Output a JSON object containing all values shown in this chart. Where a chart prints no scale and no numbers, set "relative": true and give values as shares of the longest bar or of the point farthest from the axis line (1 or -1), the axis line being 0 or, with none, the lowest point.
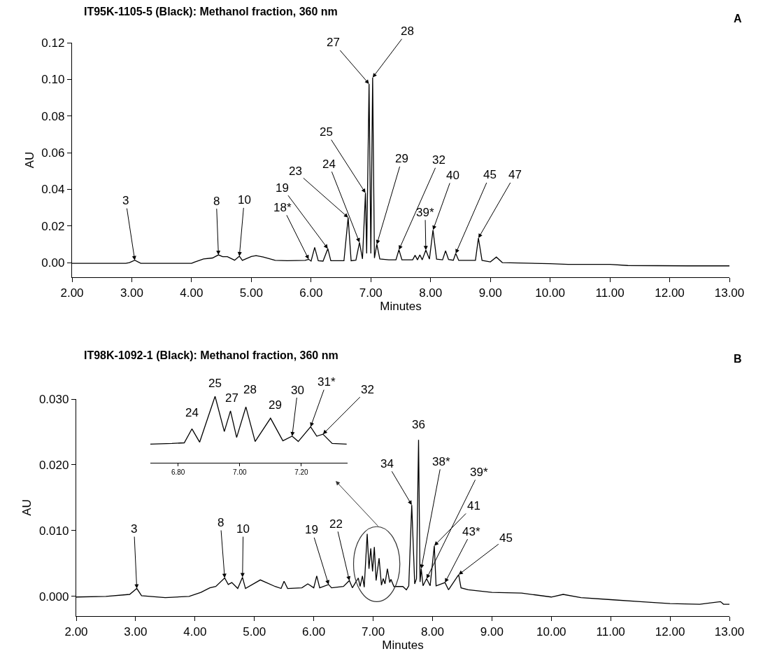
{
  "chart_data": [
    {
      "type": "line",
      "title": "IT95K-1105-5 (Black): Methanol fraction, 360 nm",
      "xlabel": "Minutes",
      "ylabel": "AU",
      "color": "#000000",
      "x": [
        2.0,
        2.9,
        2.96,
        3.05,
        3.15,
        4.0,
        4.05,
        4.2,
        4.35,
        4.45,
        4.52,
        4.6,
        4.72,
        4.8,
        4.85,
        5.0,
        5.08,
        5.2,
        5.4,
        5.6,
        5.9,
        5.96,
        6.0,
        6.06,
        6.12,
        6.2,
        6.28,
        6.33,
        6.55,
        6.62,
        6.67,
        6.75,
        6.81,
        6.86,
        6.91,
        6.93,
        6.97,
        7.0,
        7.03,
        7.06,
        7.1,
        7.15,
        7.3,
        7.42,
        7.47,
        7.52,
        7.7,
        7.74,
        7.78,
        7.82,
        7.86,
        7.92,
        7.98,
        8.04,
        8.1,
        8.2,
        8.25,
        8.3,
        8.38,
        8.42,
        8.47,
        8.75,
        8.8,
        8.86,
        9.0,
        9.1,
        9.2,
        10.0,
        10.3,
        11.0,
        11.3,
        12.3,
        13.0
      ],
      "values": [
        -0.0004,
        -0.0004,
        0.0,
        0.0013,
        -0.0004,
        -0.0004,
        0.0003,
        0.002,
        0.0025,
        0.0042,
        0.0032,
        0.0032,
        0.0013,
        0.0035,
        0.0012,
        0.0033,
        0.0038,
        0.003,
        0.0012,
        0.001,
        0.0012,
        0.0018,
        0.0008,
        0.0083,
        0.001,
        0.0008,
        0.0076,
        0.001,
        0.001,
        0.0246,
        0.001,
        0.0013,
        0.011,
        0.002,
        0.038,
        0.005,
        0.0975,
        0.005,
        0.101,
        0.0025,
        0.01,
        0.002,
        0.0015,
        0.0015,
        0.007,
        0.0015,
        0.0015,
        0.004,
        0.0015,
        0.0042,
        0.0015,
        0.0068,
        0.0019,
        0.0178,
        0.0019,
        0.0015,
        0.0064,
        0.0017,
        0.0013,
        0.005,
        0.0012,
        0.0012,
        0.0134,
        0.0012,
        0.0004,
        0.003,
        0.0,
        -0.0006,
        -0.001,
        -0.001,
        -0.0016,
        -0.0018,
        -0.0018
      ],
      "xlim": [
        2.0,
        13.0
      ],
      "xticks": [
        {
          "value": 2,
          "label": "2.00"
        },
        {
          "value": 3,
          "label": "3.00"
        },
        {
          "value": 4,
          "label": "4.00"
        },
        {
          "value": 5,
          "label": "5.00"
        },
        {
          "value": 6,
          "label": "6.00"
        },
        {
          "value": 7,
          "label": "7.00"
        },
        {
          "value": 8,
          "label": "8.00"
        },
        {
          "value": 9,
          "label": "9.00"
        },
        {
          "value": 10,
          "label": "10.00"
        },
        {
          "value": 11,
          "label": "11.00"
        },
        {
          "value": 12,
          "label": "12.00"
        },
        {
          "value": 13,
          "label": "13.00"
        }
      ],
      "ylim": [
        -0.008,
        0.12
      ],
      "yticks": [
        {
          "value": 0,
          "label": "0.00"
        },
        {
          "value": 0.02,
          "label": "0.02"
        },
        {
          "value": 0.04,
          "label": "0.04"
        },
        {
          "value": 0.06,
          "label": "0.06"
        },
        {
          "value": 0.08,
          "label": "0.08"
        },
        {
          "value": 0.1,
          "label": "0.10"
        },
        {
          "value": 0.12,
          "label": "0.12"
        }
      ],
      "annotations": [
        {
          "text": "3",
          "x": 3.05,
          "y": 0.0013
        },
        {
          "text": "8",
          "x": 4.45,
          "y": 0.0042
        },
        {
          "text": "10",
          "x": 4.8,
          "y": 0.0035
        },
        {
          "text": "18*",
          "x": 5.96,
          "y": 0.0018
        },
        {
          "text": "19",
          "x": 6.28,
          "y": 0.0076
        },
        {
          "text": "23",
          "x": 6.62,
          "y": 0.0246
        },
        {
          "text": "24",
          "x": 6.81,
          "y": 0.011
        },
        {
          "text": "25",
          "x": 6.91,
          "y": 0.038
        },
        {
          "text": "27",
          "x": 6.97,
          "y": 0.0975
        },
        {
          "text": "28",
          "x": 7.03,
          "y": 0.101
        },
        {
          "text": "29",
          "x": 7.1,
          "y": 0.01
        },
        {
          "text": "32",
          "x": 7.47,
          "y": 0.007
        },
        {
          "text": "39*",
          "x": 7.92,
          "y": 0.0068
        },
        {
          "text": "40",
          "x": 8.04,
          "y": 0.0178
        },
        {
          "text": "45",
          "x": 8.42,
          "y": 0.005
        },
        {
          "text": "47",
          "x": 8.8,
          "y": 0.0134
        },
        "A"
      ]
    },
    {
      "type": "line",
      "title": "IT98K-1092-1 (Black): Methanol fraction, 360 nm",
      "xlabel": "Minutes",
      "ylabel": "AU",
      "color": "#000000",
      "x": [
        2.0,
        2.5,
        2.9,
        3.02,
        3.1,
        3.5,
        3.9,
        4.1,
        4.25,
        4.35,
        4.5,
        4.56,
        4.62,
        4.72,
        4.8,
        4.85,
        5.1,
        5.35,
        5.45,
        5.5,
        5.56,
        5.8,
        5.9,
        6.0,
        6.05,
        6.1,
        6.25,
        6.3,
        6.5,
        6.6,
        6.65,
        6.75,
        6.78,
        6.82,
        6.85,
        6.9,
        6.93,
        6.96,
        6.99,
        7.02,
        7.05,
        7.1,
        7.14,
        7.17,
        7.2,
        7.24,
        7.28,
        7.3,
        7.35,
        7.5,
        7.56,
        7.6,
        7.65,
        7.7,
        7.73,
        7.765,
        7.79,
        7.81,
        7.84,
        7.9,
        7.96,
        8.03,
        8.06,
        8.21,
        8.27,
        8.44,
        8.48,
        8.6,
        9.0,
        9.5,
        10.0,
        10.2,
        10.5,
        11.0,
        11.5,
        12.0,
        12.5,
        12.85,
        12.9,
        13.0
      ],
      "values": [
        -0.0001,
        0.0,
        0.0003,
        0.0012,
        0.0001,
        -0.0002,
        0.0,
        0.0006,
        0.0013,
        0.0015,
        0.0028,
        0.0018,
        0.0021,
        0.0012,
        0.0029,
        0.0012,
        0.0025,
        0.0015,
        0.0012,
        0.0023,
        0.0012,
        0.0013,
        0.0019,
        0.0013,
        0.0031,
        0.0013,
        0.0018,
        0.0013,
        0.0015,
        0.0024,
        0.0013,
        0.0028,
        0.0015,
        0.0031,
        0.0014,
        0.0095,
        0.0042,
        0.0073,
        0.0038,
        0.0075,
        0.0024,
        0.0058,
        0.0017,
        0.0027,
        0.0019,
        0.0042,
        0.0021,
        0.0026,
        0.0015,
        0.0015,
        0.001,
        0.0016,
        0.0139,
        0.0019,
        0.0027,
        0.0238,
        0.0022,
        0.0042,
        0.0016,
        0.0027,
        0.0016,
        0.0077,
        0.0016,
        0.0021,
        0.001,
        0.0033,
        0.0013,
        0.001,
        0.0006,
        0.0005,
        -0.0001,
        0.0003,
        -0.0002,
        -0.0005,
        -0.0008,
        -0.0011,
        -0.0012,
        -0.0008,
        -0.0012,
        -0.0012
      ],
      "xlim": [
        2.0,
        13.0
      ],
      "xticks": [
        {
          "value": 2,
          "label": "2.00"
        },
        {
          "value": 3,
          "label": "3.00"
        },
        {
          "value": 4,
          "label": "4.00"
        },
        {
          "value": 5,
          "label": "5.00"
        },
        {
          "value": 6,
          "label": "6.00"
        },
        {
          "value": 7,
          "label": "7.00"
        },
        {
          "value": 8,
          "label": "8.00"
        },
        {
          "value": 9,
          "label": "9.00"
        },
        {
          "value": 10,
          "label": "10.00"
        },
        {
          "value": 11,
          "label": "11.00"
        },
        {
          "value": 12,
          "label": "12.00"
        },
        {
          "value": 13,
          "label": "13.00"
        }
      ],
      "ylim": [
        -0.003,
        0.03
      ],
      "yticks": [
        {
          "value": 0,
          "label": "0.000"
        },
        {
          "value": 0.01,
          "label": "0.010"
        },
        {
          "value": 0.02,
          "label": "0.020"
        },
        {
          "value": 0.03,
          "label": "0.030"
        }
      ],
      "annotations": [
        {
          "text": "3",
          "x": 3.02,
          "y": 0.0012
        },
        {
          "text": "8",
          "x": 4.5,
          "y": 0.0028
        },
        {
          "text": "10",
          "x": 4.8,
          "y": 0.0029
        },
        {
          "text": "19",
          "x": 6.25,
          "y": 0.0018
        },
        {
          "text": "22",
          "x": 6.6,
          "y": 0.0024
        },
        {
          "text": "34",
          "x": 7.65,
          "y": 0.0139
        },
        {
          "text": "36",
          "x": 7.765,
          "y": 0.0238
        },
        {
          "text": "38*",
          "x": 7.81,
          "y": 0.0042
        },
        {
          "text": "39*",
          "x": 7.9,
          "y": 0.0027
        },
        {
          "text": "41",
          "x": 8.03,
          "y": 0.0077
        },
        {
          "text": "43*",
          "x": 8.21,
          "y": 0.0021
        },
        {
          "text": "45",
          "x": 8.44,
          "y": 0.0033
        },
        "B"
      ]
    },
    {
      "type": "line",
      "relative": true,
      "tick_labels": "x",
      "color": "#000000",
      "x": [
        6.71,
        6.78,
        6.82,
        6.845,
        6.87,
        6.92,
        6.95,
        6.97,
        6.99,
        7.02,
        7.05,
        7.1,
        7.14,
        7.17,
        7.19,
        7.23,
        7.25,
        7.27,
        7.3,
        7.347
      ],
      "values": [
        0.28,
        0.29,
        0.3,
        0.51,
        0.31,
        1.0,
        0.47,
        0.78,
        0.38,
        0.84,
        0.32,
        0.67,
        0.33,
        0.4,
        0.32,
        0.54,
        0.4,
        0.43,
        0.29,
        0.28
      ],
      "xlim": [
        6.71,
        7.35
      ],
      "xticks": [
        {
          "value": 6.8,
          "label": "6.80"
        },
        {
          "value": 7.0,
          "label": "7.00"
        },
        {
          "value": 7.2,
          "label": "7.20"
        }
      ],
      "annotations": [
        {
          "text": "24",
          "x": 6.845,
          "y": 0.51
        },
        {
          "text": "25",
          "x": 6.92,
          "y": 1.0
        },
        {
          "text": "27",
          "x": 6.97,
          "y": 0.78
        },
        {
          "text": "28",
          "x": 7.02,
          "y": 0.84
        },
        {
          "text": "29",
          "x": 7.1,
          "y": 0.67
        },
        {
          "text": "30",
          "x": 7.17,
          "y": 0.4
        },
        {
          "text": "31*",
          "x": 7.23,
          "y": 0.54
        },
        {
          "text": "32",
          "x": 7.27,
          "y": 0.43
        }
      ]
    }
  ]
}
